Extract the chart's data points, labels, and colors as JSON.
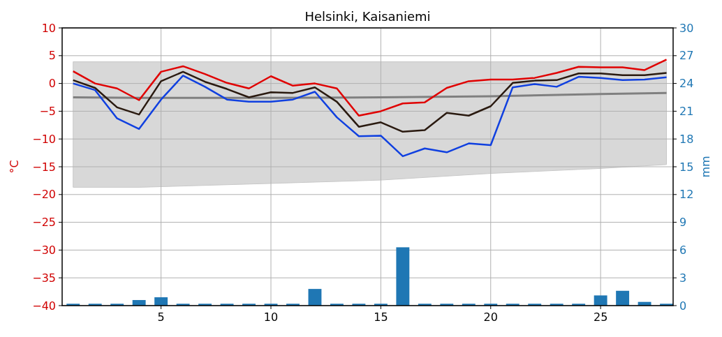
{
  "chart_data": {
    "type": "line",
    "title": "Helsinki, Kaisaniemi",
    "ylabel": "°C",
    "y2label": "mm",
    "x": [
      1,
      2,
      3,
      4,
      5,
      6,
      7,
      8,
      9,
      10,
      11,
      12,
      13,
      14,
      15,
      16,
      17,
      18,
      19,
      20,
      21,
      22,
      23,
      24,
      25,
      26,
      27,
      28
    ],
    "xlim": [
      0.5,
      28.3
    ],
    "xticks": [
      5,
      10,
      15,
      20,
      25
    ],
    "ylim": [
      -40,
      10
    ],
    "yticks": [
      -40,
      -35,
      -30,
      -25,
      -20,
      -15,
      -10,
      -5,
      0,
      5,
      10
    ],
    "y2lim": [
      0,
      30
    ],
    "y2ticks": [
      0,
      3,
      6,
      9,
      12,
      15,
      18,
      21,
      24,
      27,
      30
    ],
    "grid": true,
    "series": [
      {
        "color": "#808080",
        "x": [
          1,
          4,
          10,
          15,
          20,
          25,
          28
        ],
        "values": [
          -2.5,
          -2.6,
          -2.6,
          -2.5,
          -2.3,
          -1.9,
          -1.7
        ],
        "lower": [
          -18.7,
          -18.7,
          -18.0,
          -17.4,
          -16.2,
          -15.3,
          -14.6
        ],
        "upper": [
          3.9,
          3.9,
          3.9,
          3.9,
          3.9,
          3.9,
          3.9
        ]
      },
      {
        "type": "bar",
        "axis": "y2",
        "color": "#1f77b4",
        "values": [
          0.2,
          0.2,
          0.2,
          0.6,
          0.9,
          0.2,
          0.2,
          0.2,
          0.2,
          0.2,
          0.2,
          1.8,
          0.2,
          0.2,
          0.2,
          6.3,
          0.2,
          0.2,
          0.2,
          0.2,
          0.2,
          0.2,
          0.2,
          0.2,
          1.1,
          1.6,
          0.4,
          0.2
        ]
      },
      {
        "color": "#e00000",
        "values": [
          2.2,
          0,
          -0.9,
          -3.0,
          2.1,
          3.1,
          1.7,
          0.1,
          -0.9,
          1.3,
          -0.4,
          0,
          -0.9,
          -5.8,
          -5.0,
          -3.6,
          -3.4,
          -0.8,
          0.4,
          0.7,
          0.7,
          1.0,
          1.9,
          3.0,
          2.9,
          2.9,
          2.4,
          4.3
        ]
      },
      {
        "color": "#2a1a10",
        "values": [
          0.6,
          -0.8,
          -4.3,
          -5.6,
          0.4,
          2.1,
          0.3,
          -1.0,
          -2.5,
          -1.6,
          -1.7,
          -0.7,
          -3.3,
          -7.8,
          -7.0,
          -8.7,
          -8.4,
          -5.3,
          -5.8,
          -4.1,
          0.1,
          0.5,
          0.6,
          1.8,
          1.8,
          1.5,
          1.5,
          1.9
        ]
      },
      {
        "color": "#1040e0",
        "values": [
          0,
          -1.2,
          -6.3,
          -8.2,
          -2.9,
          1.4,
          -0.6,
          -2.9,
          -3.3,
          -3.3,
          -2.9,
          -1.5,
          -6.1,
          -9.5,
          -9.4,
          -13.1,
          -11.7,
          -12.4,
          -10.8,
          -11.1,
          -0.7,
          -0.1,
          -0.6,
          1.2,
          1.0,
          0.6,
          0.7,
          1.1
        ]
      }
    ]
  }
}
